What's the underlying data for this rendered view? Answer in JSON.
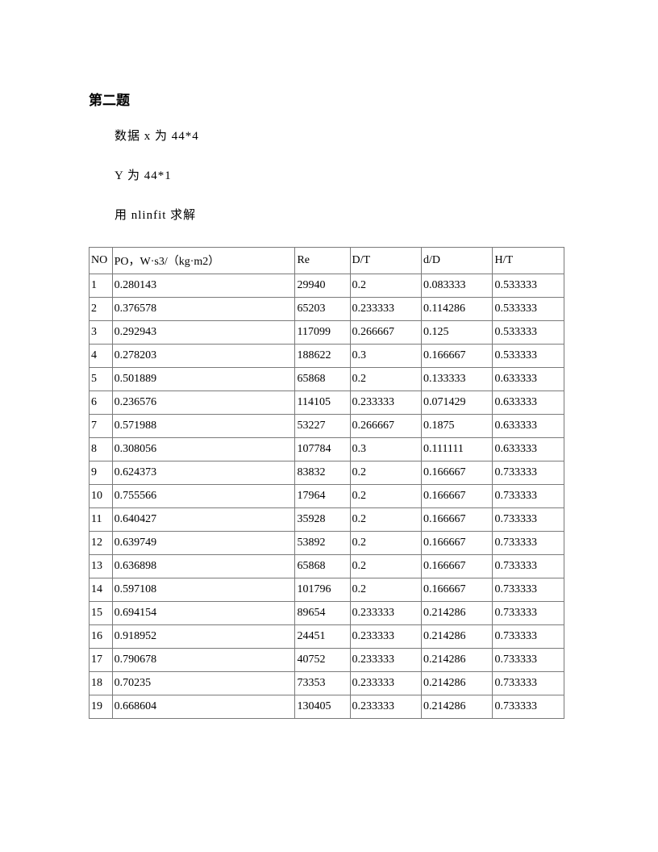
{
  "title": "第二题",
  "paragraphs": [
    "数据 x 为 44*4",
    "Y 为 44*1",
    "用 nlinfit 求解"
  ],
  "table": {
    "columns": [
      "NO",
      "PO，W·s3/（kg·m2）",
      "Re",
      "D/T",
      "d/D",
      "H/T"
    ],
    "rows": [
      [
        "1",
        "0.280143",
        "29940",
        "0.2",
        "0.083333",
        "0.533333"
      ],
      [
        "2",
        "0.376578",
        "65203",
        "0.233333",
        "0.114286",
        "0.533333"
      ],
      [
        "3",
        "0.292943",
        "117099",
        "0.266667",
        "0.125",
        "0.533333"
      ],
      [
        "4",
        "0.278203",
        "188622",
        "0.3",
        "0.166667",
        "0.533333"
      ],
      [
        "5",
        "0.501889",
        "65868",
        "0.2",
        "0.133333",
        "0.633333"
      ],
      [
        "6",
        "0.236576",
        "114105",
        "0.233333",
        "0.071429",
        "0.633333"
      ],
      [
        "7",
        "0.571988",
        "53227",
        "0.266667",
        "0.1875",
        "0.633333"
      ],
      [
        "8",
        "0.308056",
        "107784",
        "0.3",
        "0.111111",
        "0.633333"
      ],
      [
        "9",
        "0.624373",
        "83832",
        "0.2",
        "0.166667",
        "0.733333"
      ],
      [
        "10",
        "0.755566",
        "17964",
        "0.2",
        "0.166667",
        "0.733333"
      ],
      [
        "11",
        "0.640427",
        "35928",
        "0.2",
        "0.166667",
        "0.733333"
      ],
      [
        "12",
        "0.639749",
        "53892",
        "0.2",
        "0.166667",
        "0.733333"
      ],
      [
        "13",
        "0.636898",
        "65868",
        "0.2",
        "0.166667",
        "0.733333"
      ],
      [
        "14",
        "0.597108",
        "101796",
        "0.2",
        "0.166667",
        "0.733333"
      ],
      [
        "15",
        "0.694154",
        "89654",
        "0.233333",
        "0.214286",
        "0.733333"
      ],
      [
        "16",
        "0.918952",
        "24451",
        "0.233333",
        "0.214286",
        "0.733333"
      ],
      [
        "17",
        "0.790678",
        "40752",
        "0.233333",
        "0.214286",
        "0.733333"
      ],
      [
        "18",
        "0.70235",
        "73353",
        "0.233333",
        "0.214286",
        "0.733333"
      ],
      [
        "19",
        "0.668604",
        "130405",
        "0.233333",
        "0.214286",
        "0.733333"
      ]
    ],
    "col_classes": [
      "col-no",
      "col-po",
      "col-re",
      "col-dt",
      "col-dd",
      "col-ht"
    ]
  }
}
